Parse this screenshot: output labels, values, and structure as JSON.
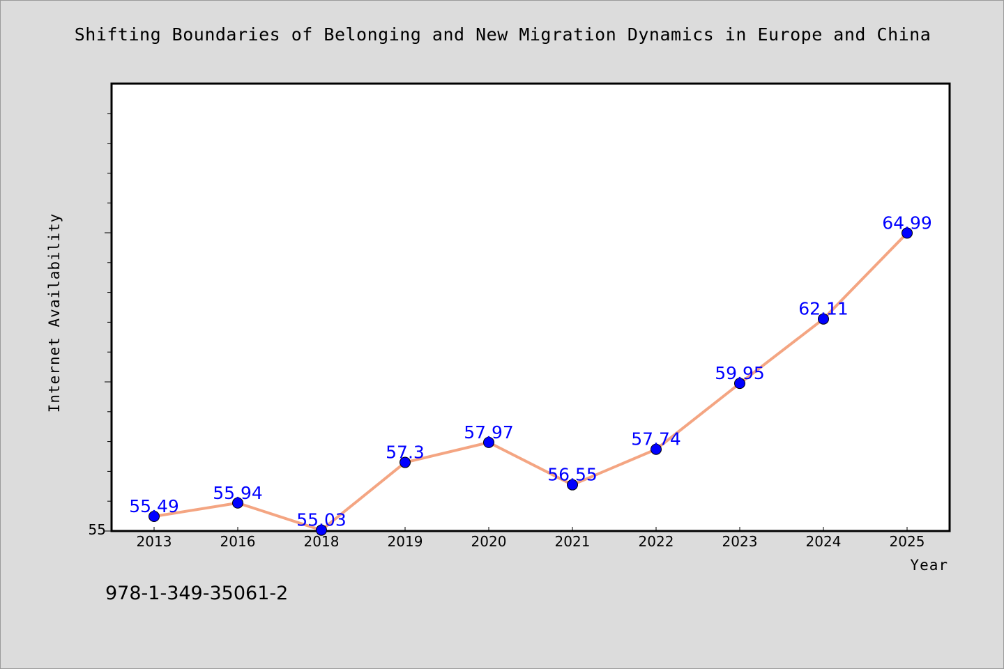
{
  "chart_data": {
    "type": "line",
    "title": "Shifting Boundaries of Belonging and New Migration Dynamics in Europe and China",
    "xlabel": "Year",
    "ylabel": "Internet Availability",
    "categories": [
      "2013",
      "2016",
      "2018",
      "2019",
      "2020",
      "2021",
      "2022",
      "2023",
      "2024",
      "2025"
    ],
    "series": [
      {
        "values": [
          55.49,
          55.94,
          55.03,
          57.3,
          57.97,
          56.55,
          57.74,
          59.95,
          62.11,
          64.99
        ],
        "labels": [
          "55.49",
          "55.94",
          "55.03",
          "57.3",
          "57.97",
          "56.55",
          "57.74",
          "59.95",
          "62.11",
          "64.99"
        ]
      }
    ],
    "ylim": [
      55,
      70
    ],
    "y_tick_labels": [
      "55"
    ],
    "y_minor_step": 1,
    "y_major_step": 5,
    "grid": false,
    "colors": {
      "line": "#f4a582",
      "marker": "#0000ff",
      "data_label": "#0000ff",
      "plot_background": "#ffffff",
      "page_background": "#dcdcdc"
    }
  },
  "footer": {
    "isbn": "978-1-349-35061-2"
  }
}
